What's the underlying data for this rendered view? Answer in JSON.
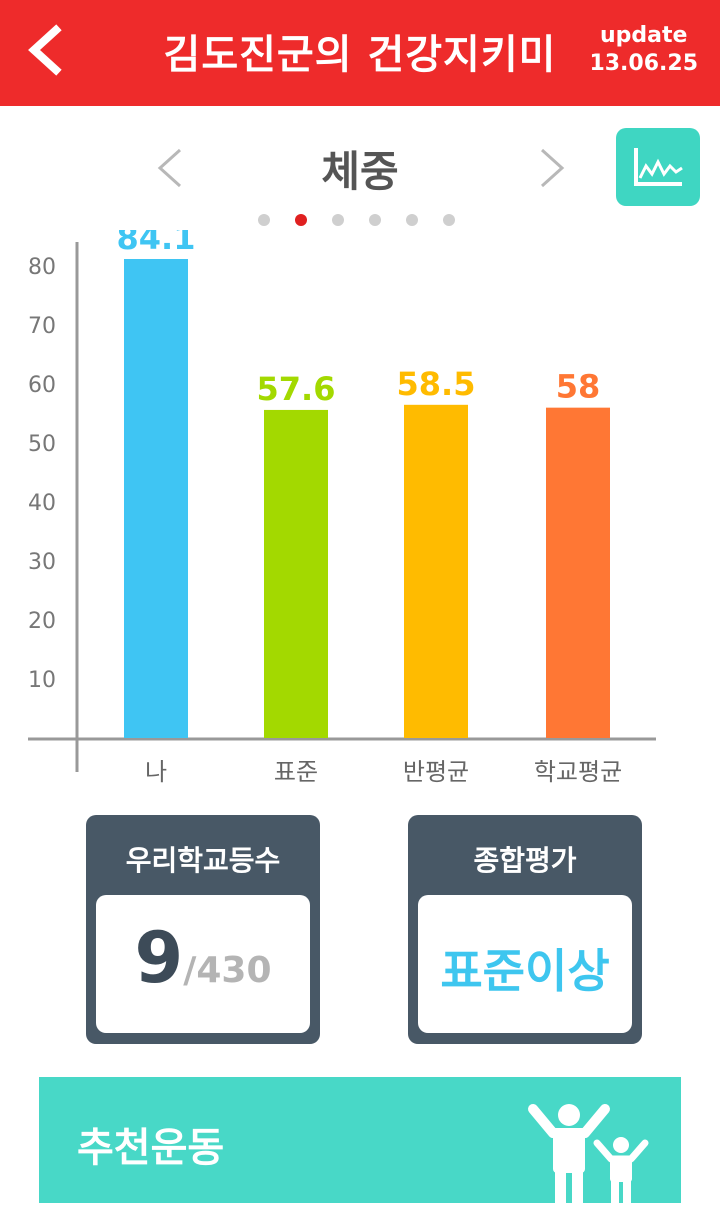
{
  "header": {
    "title": "김도진군의 건강지키미",
    "update_label": "update",
    "update_date": "13.06.25"
  },
  "chart_title": "체중",
  "pager": {
    "count": 6,
    "active": 1
  },
  "chart_data": {
    "type": "bar",
    "categories": [
      "나",
      "표준",
      "반평균",
      "학교평균"
    ],
    "values": [
      84.1,
      57.6,
      58.5,
      58
    ],
    "value_labels": [
      "84.1",
      "57.6",
      "58.5",
      "58"
    ],
    "colors": [
      "#3fc5f3",
      "#a3d900",
      "#ffbb00",
      "#ff7734"
    ],
    "yticks": [
      10,
      20,
      30,
      40,
      50,
      60,
      70,
      80
    ],
    "ylim": [
      0,
      84.1
    ],
    "title": "",
    "xlabel": "",
    "ylabel": "",
    "grid": false
  },
  "rank_card": {
    "title": "우리학교등수",
    "rank": "9",
    "total": "/430"
  },
  "eval_card": {
    "title": "종합평가",
    "value": "표준이상"
  },
  "banner": {
    "label": "추천운동"
  },
  "icons": {
    "back": "chevron-left-icon",
    "prev": "chevron-left-icon",
    "next": "chevron-right-icon",
    "graph": "line-graph-icon",
    "people": "people-cheering-icon"
  },
  "colors": {
    "header": "#ee2b2b",
    "accent": "#48d8c7",
    "card": "#485866",
    "dot_active": "#e02020",
    "dot_inactive": "#cfcfcf"
  }
}
